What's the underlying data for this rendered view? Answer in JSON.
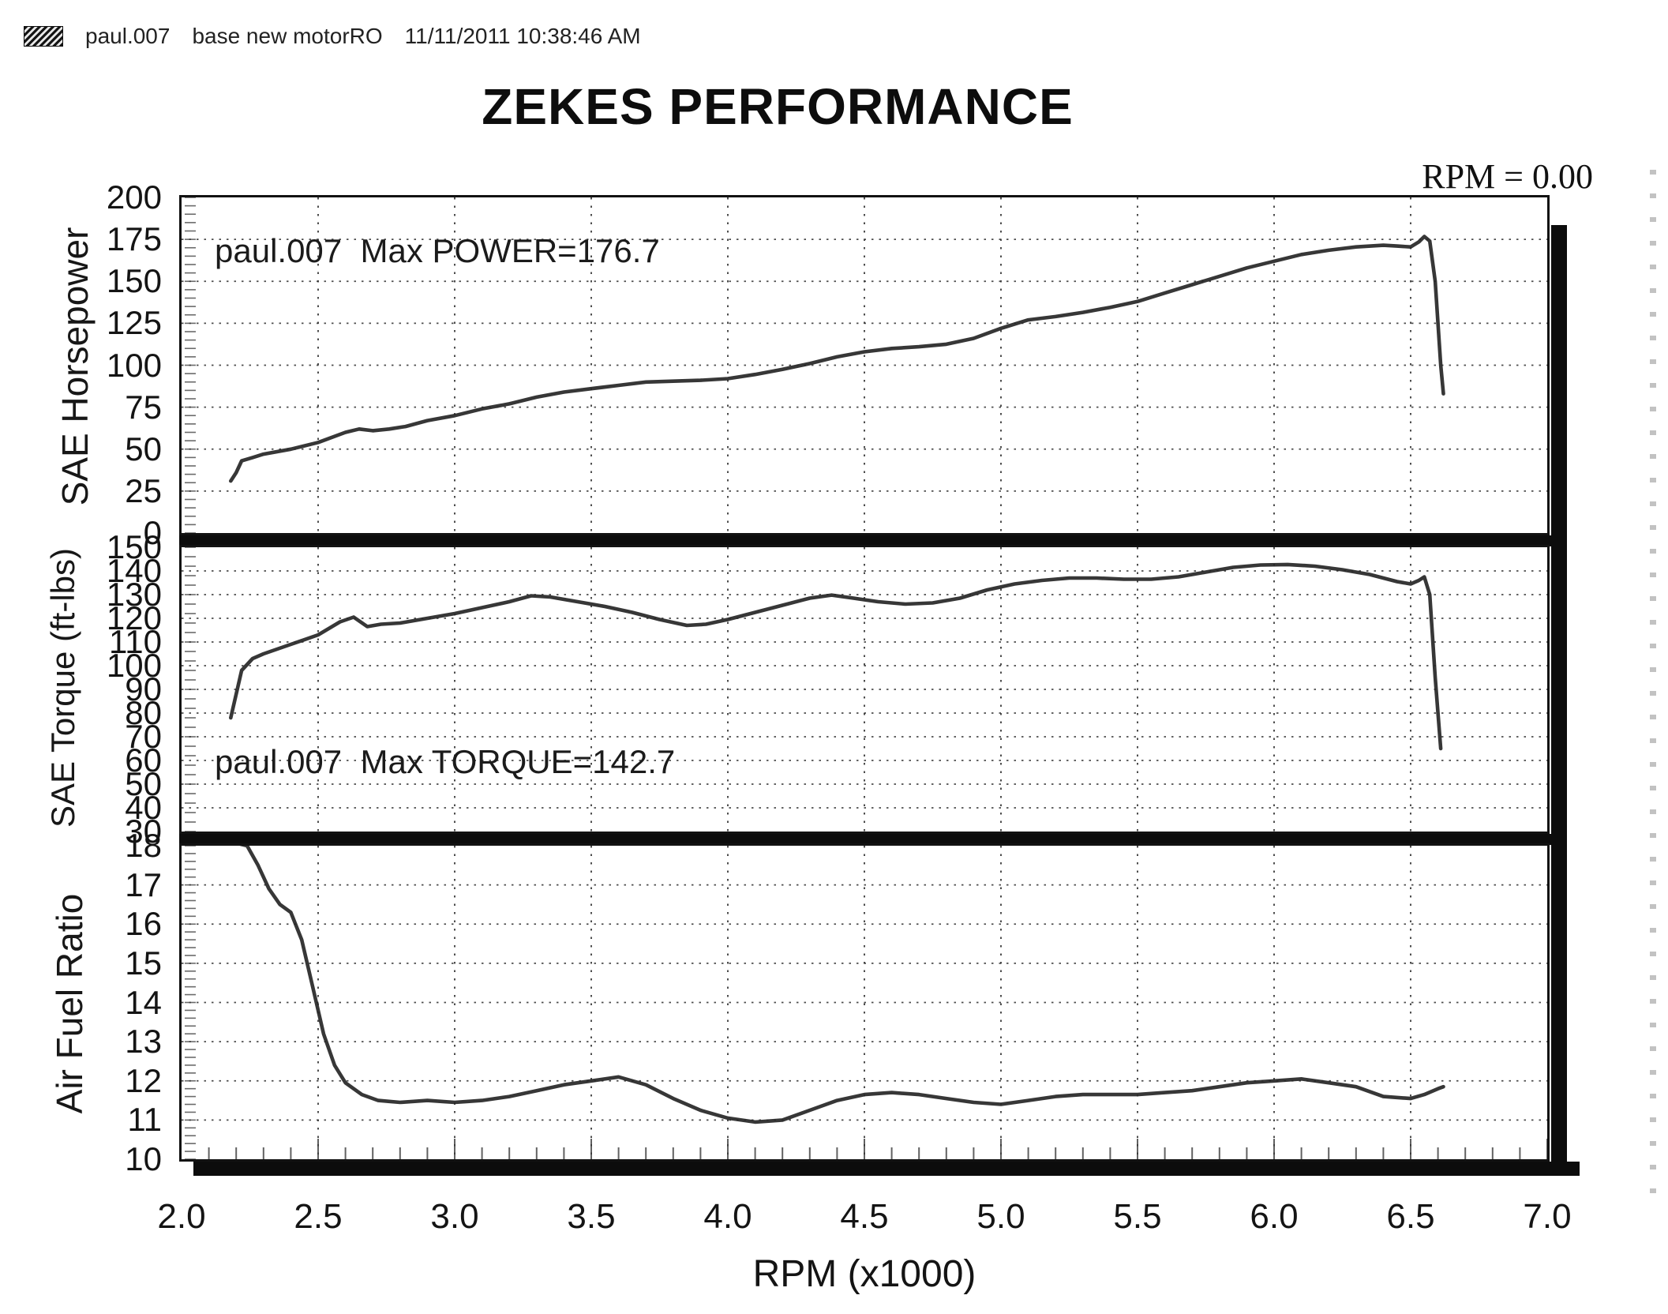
{
  "header": {
    "file_label": "paul.007",
    "run_label": "base new motorRO",
    "timestamp": "11/11/2011 10:38:46 AM"
  },
  "title": "ZEKES PERFORMANCE",
  "rpm_readout": "RPM = 0.00",
  "styles": {
    "ink": "#161616",
    "grid": "#3a3a3a",
    "curve": "#262626",
    "frame": "#121212"
  },
  "x_axis": {
    "label": "RPM (x1000)",
    "min": 2.0,
    "max": 7.0,
    "tick_step": 0.5,
    "ticks": [
      "2.0",
      "2.5",
      "3.0",
      "3.5",
      "4.0",
      "4.5",
      "5.0",
      "5.5",
      "6.0",
      "6.5",
      "7.0"
    ]
  },
  "chart_data": [
    {
      "type": "line",
      "panel": "horsepower",
      "ylabel": "SAE Horsepower",
      "ylim": [
        0,
        200
      ],
      "ytick_step": 25,
      "yticks": [
        "200",
        "175",
        "150",
        "125",
        "100",
        "75",
        "50",
        "25",
        "0"
      ],
      "annotation": "paul.007  Max POWER=176.7",
      "max_value": 176.7,
      "grid": true,
      "legend": "none",
      "series": [
        {
          "name": "SAE Horsepower",
          "x": [
            2.18,
            2.2,
            2.22,
            2.26,
            2.3,
            2.4,
            2.5,
            2.6,
            2.65,
            2.7,
            2.76,
            2.82,
            2.9,
            3.0,
            3.1,
            3.2,
            3.3,
            3.4,
            3.5,
            3.6,
            3.7,
            3.8,
            3.9,
            4.0,
            4.1,
            4.2,
            4.3,
            4.4,
            4.5,
            4.6,
            4.7,
            4.8,
            4.9,
            5.0,
            5.1,
            5.2,
            5.3,
            5.4,
            5.5,
            5.6,
            5.7,
            5.8,
            5.9,
            6.0,
            6.1,
            6.2,
            6.3,
            6.4,
            6.45,
            6.5,
            6.53,
            6.55,
            6.57,
            6.59,
            6.61,
            6.62
          ],
          "y": [
            31,
            36,
            43,
            45,
            47,
            50,
            54,
            60,
            62,
            61,
            62,
            63.5,
            67,
            70,
            74,
            77,
            81,
            84,
            86,
            88,
            90,
            90.5,
            91,
            92,
            94.5,
            97.5,
            101,
            105,
            108,
            110,
            111,
            112.5,
            116,
            122,
            127,
            129,
            131.5,
            134.5,
            138,
            143,
            148,
            153,
            158,
            162,
            166,
            168.5,
            170.5,
            171.5,
            171,
            170.5,
            173.5,
            176.7,
            174,
            150,
            100,
            83
          ]
        }
      ]
    },
    {
      "type": "line",
      "panel": "torque",
      "ylabel": "SAE Torque (ft-lbs)",
      "ylim": [
        30,
        150
      ],
      "ytick_step": 10,
      "yticks": [
        "150",
        "140",
        "130",
        "120",
        "110",
        "100",
        "90",
        "80",
        "70",
        "60",
        "50",
        "40",
        "30"
      ],
      "annotation": "paul.007  Max TORQUE=142.7",
      "max_value": 142.7,
      "grid": true,
      "legend": "none",
      "series": [
        {
          "name": "SAE Torque (ft-lbs)",
          "x": [
            2.18,
            2.2,
            2.22,
            2.26,
            2.3,
            2.4,
            2.5,
            2.58,
            2.63,
            2.68,
            2.73,
            2.8,
            2.9,
            3.0,
            3.1,
            3.2,
            3.28,
            3.35,
            3.45,
            3.55,
            3.65,
            3.75,
            3.85,
            3.92,
            4.0,
            4.1,
            4.2,
            4.3,
            4.38,
            4.46,
            4.55,
            4.65,
            4.75,
            4.85,
            4.95,
            5.05,
            5.15,
            5.25,
            5.35,
            5.45,
            5.55,
            5.65,
            5.75,
            5.85,
            5.95,
            6.05,
            6.15,
            6.25,
            6.35,
            6.45,
            6.5,
            6.53,
            6.55,
            6.57,
            6.59,
            6.61
          ],
          "y": [
            78,
            88,
            98,
            103,
            105,
            109,
            113,
            118.5,
            120.5,
            116.5,
            117.5,
            118,
            120,
            122,
            124.5,
            127,
            129.5,
            129,
            127,
            125,
            122.5,
            119.5,
            117,
            117.5,
            119.5,
            122.5,
            125.5,
            128.5,
            129.8,
            128.5,
            127,
            126,
            126.5,
            128.5,
            132,
            134.5,
            136,
            137,
            137,
            136.5,
            136.5,
            137.5,
            139.5,
            141.5,
            142.5,
            142.7,
            142,
            140.5,
            138.5,
            135.5,
            134.5,
            136,
            137.5,
            130,
            95,
            65
          ]
        }
      ]
    },
    {
      "type": "line",
      "panel": "air-fuel-ratio",
      "ylabel": "Air Fuel Ratio",
      "ylim": [
        10,
        18
      ],
      "ytick_step": 1,
      "yticks": [
        "18",
        "17",
        "16",
        "15",
        "14",
        "13",
        "12",
        "11",
        "10"
      ],
      "annotation": "",
      "grid": true,
      "legend": "none",
      "series": [
        {
          "name": "Air Fuel Ratio",
          "x": [
            2.18,
            2.24,
            2.28,
            2.32,
            2.36,
            2.4,
            2.44,
            2.48,
            2.52,
            2.56,
            2.6,
            2.66,
            2.72,
            2.8,
            2.9,
            3.0,
            3.1,
            3.2,
            3.3,
            3.4,
            3.5,
            3.6,
            3.7,
            3.8,
            3.9,
            4.0,
            4.1,
            4.2,
            4.3,
            4.4,
            4.5,
            4.6,
            4.7,
            4.8,
            4.9,
            5.0,
            5.1,
            5.2,
            5.3,
            5.4,
            5.5,
            5.6,
            5.7,
            5.8,
            5.9,
            6.0,
            6.1,
            6.2,
            6.3,
            6.4,
            6.5,
            6.55,
            6.6,
            6.62
          ],
          "y": [
            18.1,
            18.0,
            17.5,
            16.9,
            16.5,
            16.3,
            15.6,
            14.4,
            13.2,
            12.4,
            11.95,
            11.65,
            11.5,
            11.45,
            11.5,
            11.45,
            11.5,
            11.6,
            11.75,
            11.9,
            12.0,
            12.1,
            11.9,
            11.55,
            11.25,
            11.05,
            10.95,
            11.0,
            11.25,
            11.5,
            11.65,
            11.7,
            11.65,
            11.55,
            11.45,
            11.4,
            11.5,
            11.6,
            11.65,
            11.65,
            11.65,
            11.7,
            11.75,
            11.85,
            11.95,
            12.0,
            12.05,
            11.95,
            11.85,
            11.6,
            11.55,
            11.65,
            11.8,
            11.85
          ]
        }
      ]
    }
  ]
}
